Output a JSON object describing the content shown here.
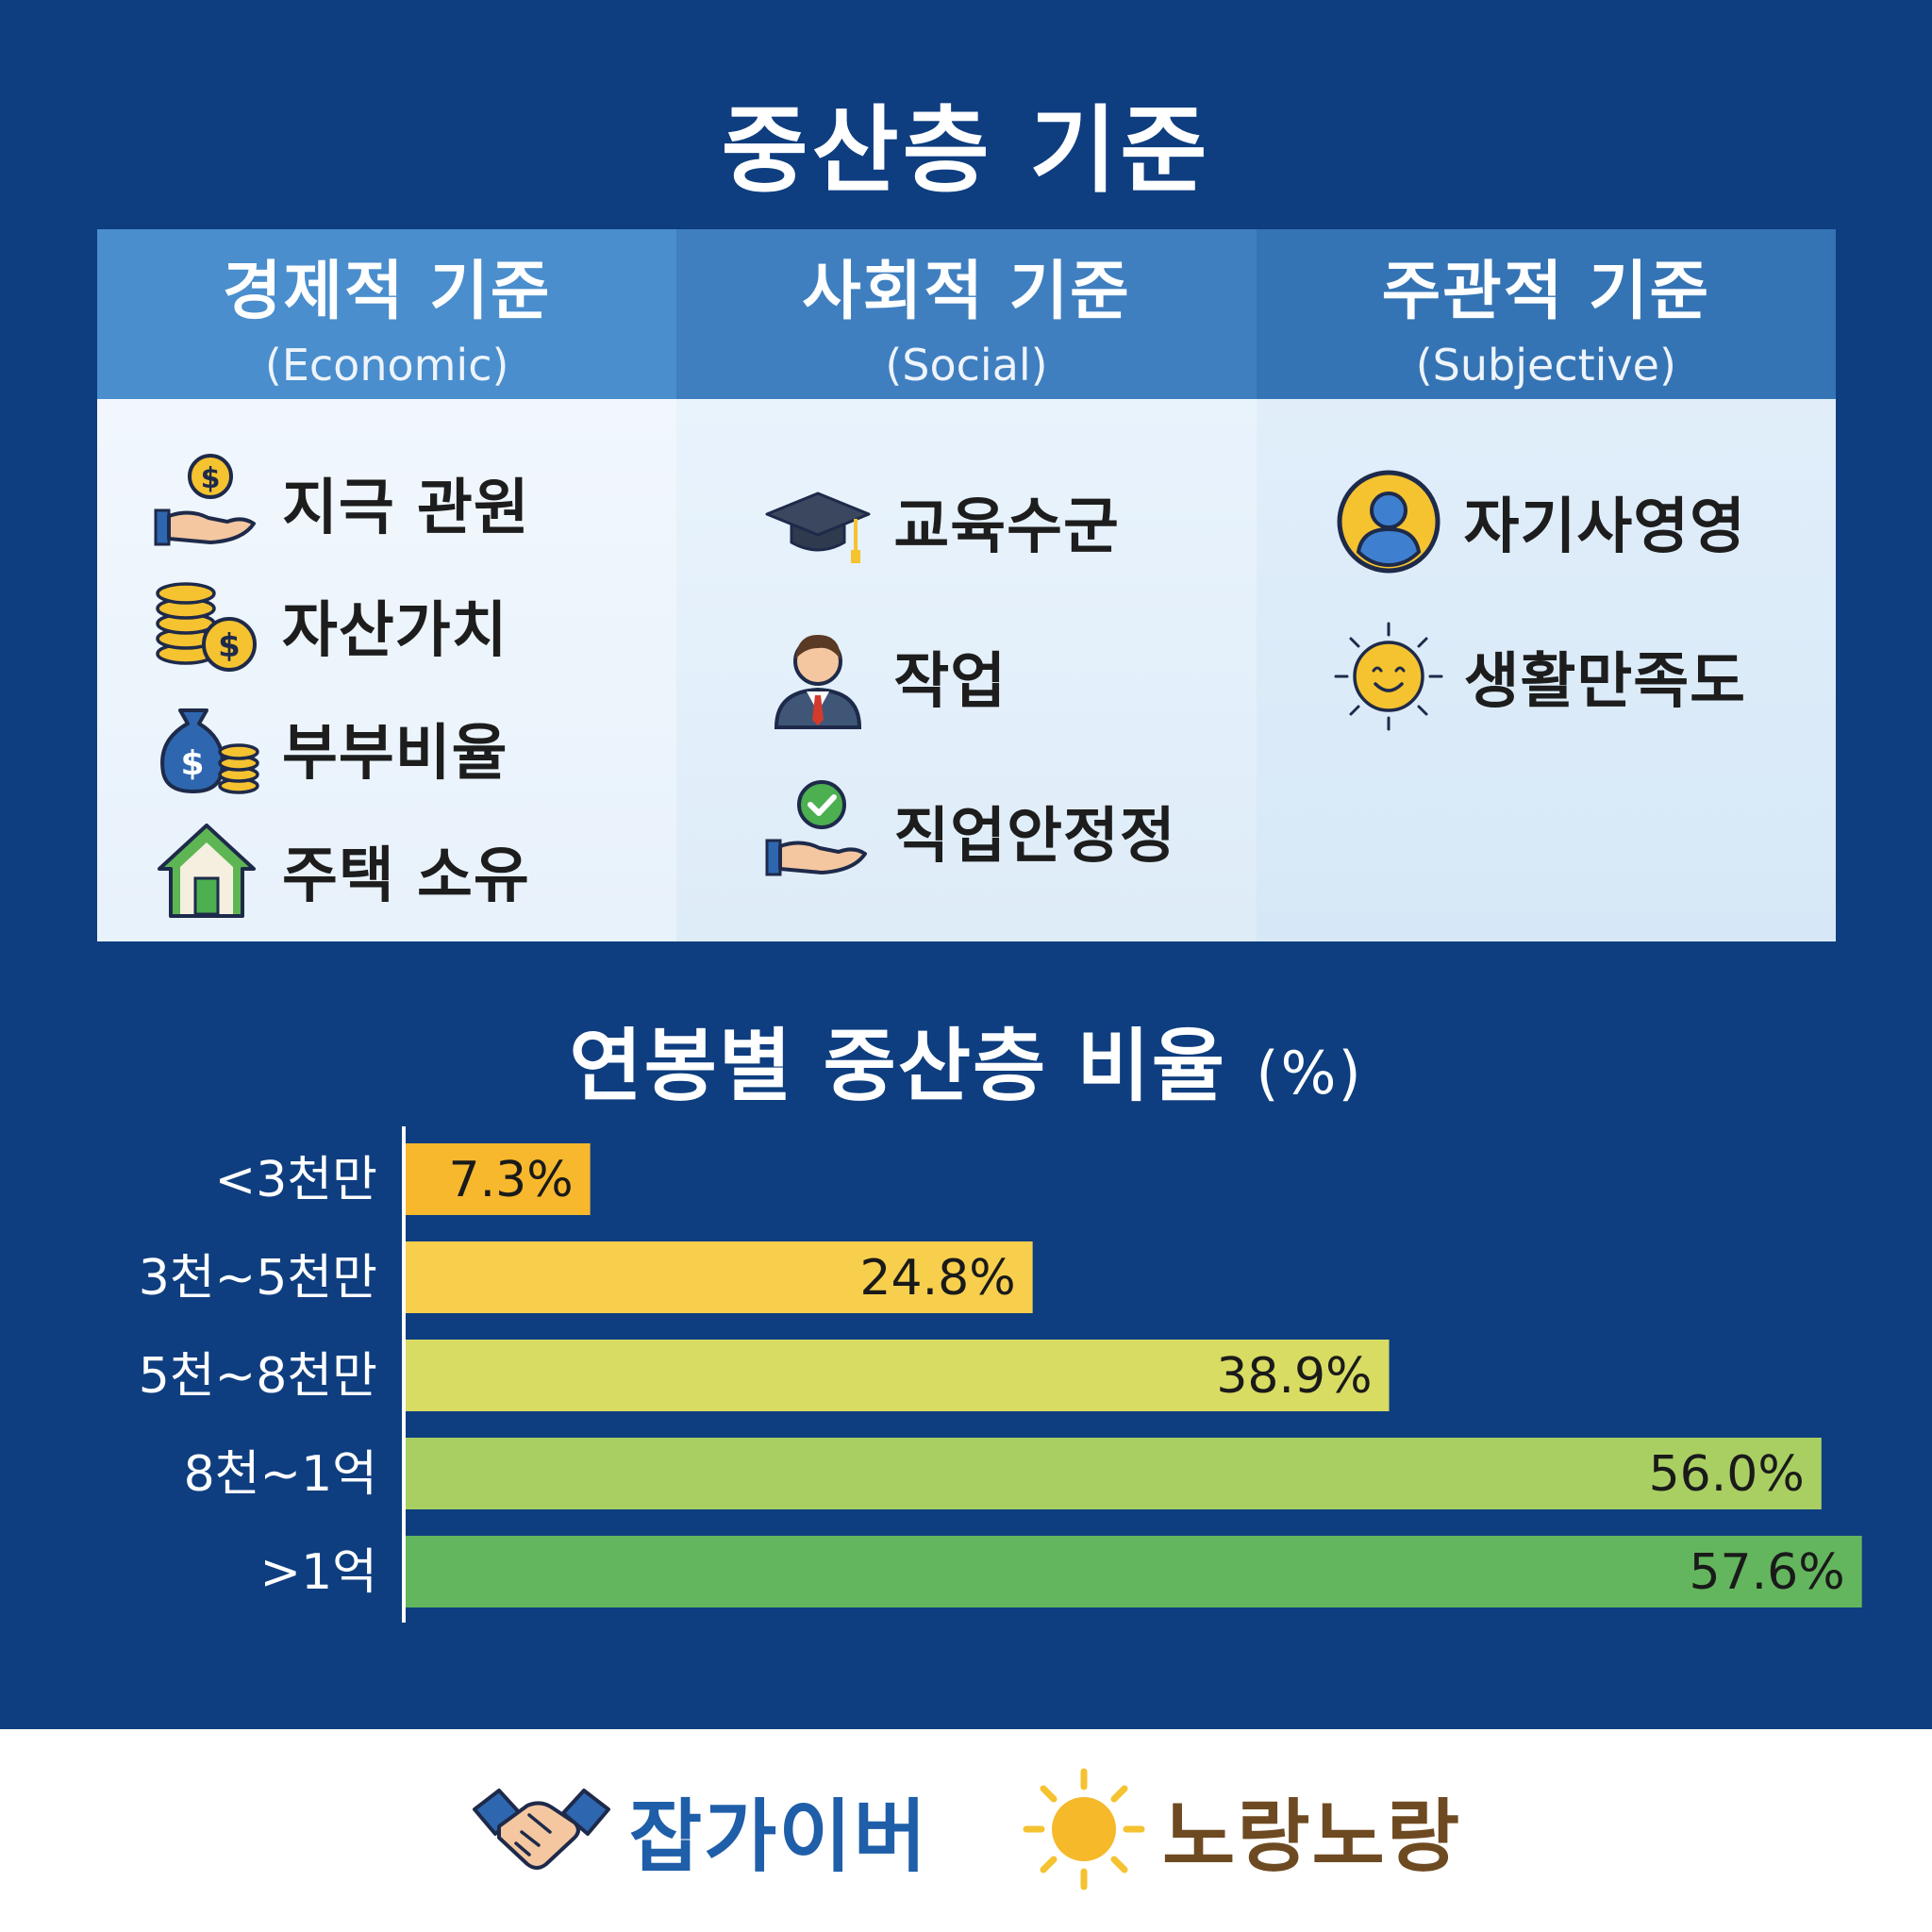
{
  "title": "중산층 기준",
  "criteria": {
    "economic": {
      "title_ko": "경제적 기준",
      "title_en": "(Economic)",
      "items": [
        {
          "label": "지극 관원",
          "icon": "hand-coin-icon"
        },
        {
          "label": "자산가치",
          "icon": "coin-stack-icon"
        },
        {
          "label": "부부비율",
          "icon": "money-bag-icon"
        },
        {
          "label": "주택 소유",
          "icon": "house-icon"
        }
      ]
    },
    "social": {
      "title_ko": "사회적 기준",
      "title_en": "(Social)",
      "items": [
        {
          "label": "교육수군",
          "icon": "graduation-cap-icon"
        },
        {
          "label": "작업",
          "icon": "businessman-icon"
        },
        {
          "label": "직업안정정",
          "icon": "hand-check-icon"
        }
      ]
    },
    "subjective": {
      "title_ko": "주관적 기준",
      "title_en": "(Subjective)",
      "items": [
        {
          "label": "자기사영영",
          "icon": "user-circle-icon"
        },
        {
          "label": "생활만족도",
          "icon": "smiling-sun-icon"
        }
      ]
    }
  },
  "chart_data": {
    "type": "bar",
    "orientation": "horizontal",
    "title": "연봉별 중산층 비율",
    "unit_label": "(%)",
    "categories": [
      "<3천만",
      "3천~5천만",
      "5천~8천만",
      "8천~1억",
      ">1억"
    ],
    "values": [
      7.3,
      24.8,
      38.9,
      56.0,
      57.6
    ],
    "value_labels": [
      "7.3%",
      "24.8%",
      "38.9%",
      "56.0%",
      "57.6%"
    ],
    "colors": [
      "#f7b82e",
      "#f7cf4d",
      "#d8dc62",
      "#a9cf62",
      "#63b65d"
    ],
    "xlim": [
      0,
      60
    ],
    "grid": false
  },
  "footer": {
    "brand1": "잡가이버",
    "brand2": "노랑노랑"
  }
}
